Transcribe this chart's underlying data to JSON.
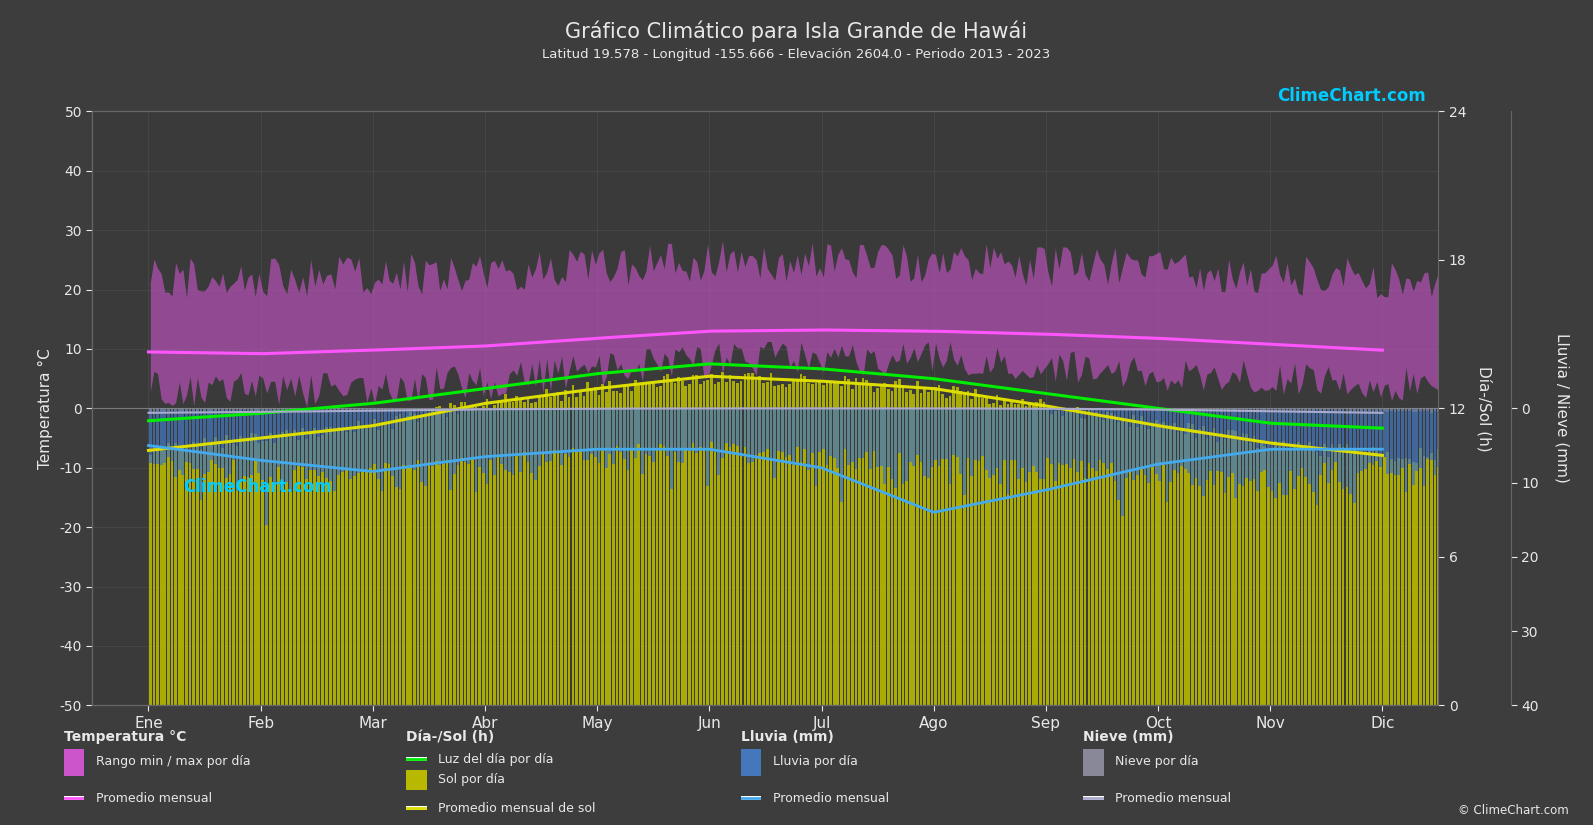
{
  "title": "Gráfico Climático para Isla Grande de Hawái",
  "subtitle": "Latitud 19.578 - Longitud -155.666 - Elevación 2604.0 - Periodo 2013 - 2023",
  "months": [
    "Ene",
    "Feb",
    "Mar",
    "Abr",
    "May",
    "Jun",
    "Jul",
    "Ago",
    "Sep",
    "Oct",
    "Nov",
    "Dic"
  ],
  "temp_avg": [
    9.5,
    9.2,
    9.8,
    10.5,
    11.8,
    13.0,
    13.2,
    13.0,
    12.5,
    11.8,
    10.8,
    9.8
  ],
  "temp_max_avg": [
    22.0,
    22.0,
    22.5,
    23.0,
    24.0,
    24.8,
    24.8,
    24.8,
    24.0,
    23.5,
    22.5,
    22.0
  ],
  "temp_min_avg": [
    3.5,
    3.0,
    3.5,
    4.5,
    6.5,
    8.0,
    8.5,
    8.5,
    7.5,
    6.0,
    5.0,
    4.0
  ],
  "daily_max_noise": 3.5,
  "daily_min_noise": 3.0,
  "daylight": [
    11.5,
    11.8,
    12.2,
    12.8,
    13.4,
    13.8,
    13.6,
    13.2,
    12.6,
    12.0,
    11.4,
    11.2
  ],
  "sunshine": [
    10.3,
    10.8,
    11.3,
    12.2,
    12.8,
    13.3,
    13.1,
    12.8,
    12.1,
    11.3,
    10.6,
    10.1
  ],
  "rain_daily_avg_mm": [
    6.0,
    7.0,
    7.5,
    6.0,
    5.0,
    4.5,
    5.0,
    6.0,
    6.5,
    7.5,
    8.0,
    6.5
  ],
  "rain_monthly_avg_mm": [
    5.0,
    7.0,
    8.5,
    6.5,
    5.5,
    5.5,
    8.0,
    14.0,
    11.0,
    7.5,
    5.5,
    5.5
  ],
  "snow_daily_avg_mm": [
    0.8,
    0.6,
    0.4,
    0.2,
    0.05,
    0.0,
    0.0,
    0.0,
    0.05,
    0.2,
    0.5,
    0.8
  ],
  "snow_monthly_avg_mm": [
    1.5,
    1.2,
    0.8,
    0.3,
    0.1,
    0.0,
    0.0,
    0.0,
    0.1,
    0.4,
    1.0,
    1.5
  ],
  "bg_color": "#3d3d3d",
  "plot_bg_color": "#3a3a3a",
  "grid_color": "#555555",
  "text_color": "#e8e8e8",
  "temp_fill_color_top": "#d060d0",
  "temp_fill_color": "#cc55cc",
  "temp_line_color": "#ff55ff",
  "daylight_color": "#00ee00",
  "sunshine_fill_color": "#b8b800",
  "sunshine_line_color": "#dddd00",
  "rain_bar_color": "#4477bb",
  "rain_line_color": "#44aaee",
  "snow_bar_color": "#888899",
  "snow_line_color": "#aaaacc",
  "ylim": [
    -50,
    50
  ],
  "sol_axis_min": 0,
  "sol_axis_max": 24,
  "rain_axis_min": 0,
  "rain_axis_max": 40
}
